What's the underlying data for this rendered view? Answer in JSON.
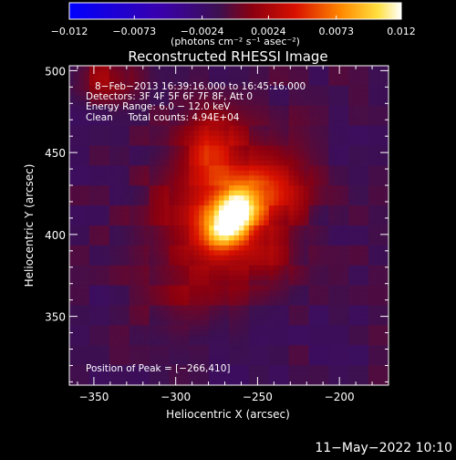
{
  "chart_data": {
    "type": "heatmap",
    "title": "Reconstructed RHESSI Image",
    "xlabel": "Heliocentric X (arcsec)",
    "ylabel": "Heliocentric Y (arcsec)",
    "xlim": [
      -365,
      -170
    ],
    "ylim": [
      308,
      503
    ],
    "x_ticks": [
      -350,
      -300,
      -250,
      -200
    ],
    "x_tick_labels": [
      "−350",
      "−300",
      "−250",
      "−200"
    ],
    "y_ticks": [
      350,
      400,
      450,
      500
    ],
    "y_tick_labels": [
      "350",
      "400",
      "450",
      "500"
    ],
    "colorbar": {
      "min": -0.012,
      "max": 0.012,
      "ticks": [
        -0.012,
        -0.0073,
        -0.0024,
        0.0024,
        0.0073,
        0.012
      ],
      "tick_labels": [
        "−0.012",
        "−0.0073",
        "−0.0024",
        "0.0024",
        "0.0073",
        "0.012"
      ],
      "colors": [
        "#0000ff",
        "#3a00aa",
        "#3c1050",
        "#a00000",
        "#ff6a00",
        "#ffffff"
      ]
    },
    "units_label": "(photons cm⁻² s⁻¹ asec⁻²)",
    "annotations": [
      "8−Feb−2013 16:39:16.000 to 16:45:16.000",
      "Detectors: 3F 4F 5F 6F 7F 8F, Att 0",
      "Energy Range: 6.0 − 12.0 keV",
      "Clean     Total counts: 4.94E+04"
    ],
    "peak_label": "Position of Peak = [−266,410]",
    "peak": [
      -266,
      410
    ],
    "sources": [
      {
        "x": -266,
        "y": 410,
        "sx": 9,
        "sy": 13,
        "amp": 0.0118,
        "rot": -35
      },
      {
        "x": -272,
        "y": 418,
        "sx": 26,
        "sy": 32,
        "amp": 0.0055,
        "rot": -30
      },
      {
        "x": -278,
        "y": 455,
        "sx": 10,
        "sy": 14,
        "amp": 0.0035,
        "rot": 0
      },
      {
        "x": -238,
        "y": 425,
        "sx": 14,
        "sy": 12,
        "amp": 0.003,
        "rot": 0
      },
      {
        "x": -245,
        "y": 385,
        "sx": 12,
        "sy": 12,
        "amp": 0.0022,
        "rot": 0
      },
      {
        "x": -342,
        "y": 495,
        "sx": 14,
        "sy": 10,
        "amp": 0.003,
        "rot": 0
      },
      {
        "x": -290,
        "y": 360,
        "sx": 18,
        "sy": 14,
        "amp": 0.0012,
        "rot": 0
      }
    ],
    "background_level": -0.0012
  },
  "footer": {
    "timestamp": "11−May−2022 10:10"
  }
}
